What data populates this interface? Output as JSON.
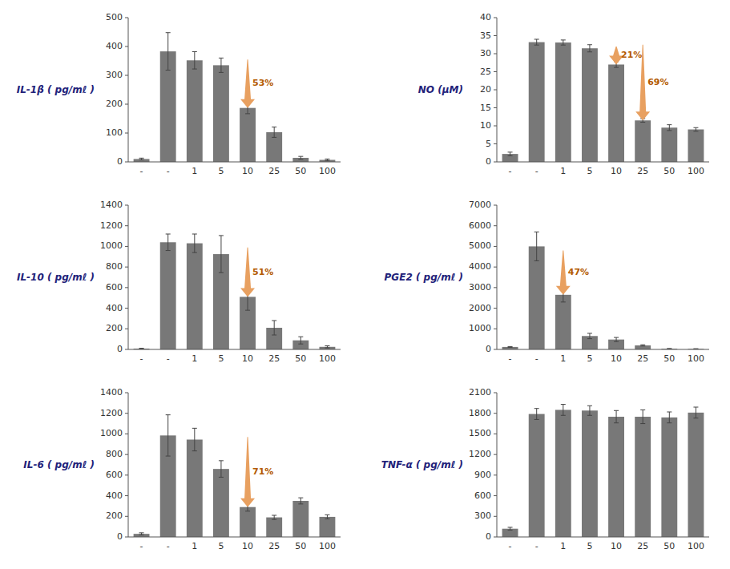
{
  "chart_data": [
    {
      "type": "bar",
      "ylabel": "IL-1β ( pg/mℓ )",
      "categories": [
        "-",
        "-",
        "1",
        "5",
        "10",
        "25",
        "50",
        "100"
      ],
      "values": [
        10,
        383,
        352,
        335,
        187,
        103,
        14,
        7
      ],
      "errors": [
        3,
        65,
        30,
        25,
        20,
        18,
        5,
        3
      ],
      "color": "#787878",
      "grid": false,
      "ylim": [
        0,
        500
      ],
      "yticks": [
        0,
        100,
        200,
        300,
        400,
        500
      ],
      "annotations": [
        {
          "text": "53%",
          "x": 4,
          "y_from": 355,
          "y_to": 187,
          "color": "#E8A060"
        }
      ]
    },
    {
      "type": "bar",
      "ylabel": "NO (μM)",
      "categories": [
        "-",
        "-",
        "1",
        "5",
        "10",
        "25",
        "50",
        "100"
      ],
      "values": [
        2.2,
        33.2,
        33.1,
        31.5,
        27.0,
        11.5,
        9.5,
        9.0
      ],
      "errors": [
        0.5,
        0.8,
        0.7,
        1.0,
        0.8,
        0.5,
        0.8,
        0.5
      ],
      "color": "#787878",
      "grid": false,
      "ylim": [
        0,
        40
      ],
      "yticks": [
        0,
        5,
        10,
        15,
        20,
        25,
        30,
        35,
        40
      ],
      "annotations": [
        {
          "text": "21%",
          "x": 4,
          "y_from": 32.0,
          "y_to": 27.0,
          "color": "#E8A060"
        },
        {
          "text": "69%",
          "x": 5,
          "y_from": 32.5,
          "y_to": 11.5,
          "color": "#E8A060"
        }
      ]
    },
    {
      "type": "bar",
      "ylabel": "IL-10 ( pg/mℓ )",
      "categories": [
        "-",
        "-",
        "1",
        "5",
        "10",
        "25",
        "50",
        "100"
      ],
      "values": [
        8,
        1040,
        1030,
        925,
        510,
        210,
        88,
        25
      ],
      "errors": [
        3,
        80,
        90,
        180,
        130,
        70,
        35,
        10
      ],
      "color": "#787878",
      "grid": false,
      "ylim": [
        0,
        1400
      ],
      "yticks": [
        0,
        200,
        400,
        600,
        800,
        1000,
        1200,
        1400
      ],
      "annotations": [
        {
          "text": "51%",
          "x": 4,
          "y_from": 990,
          "y_to": 510,
          "color": "#E8A060"
        }
      ]
    },
    {
      "type": "bar",
      "ylabel": "PGE2 ( pg/mℓ )",
      "categories": [
        "-",
        "-",
        "1",
        "5",
        "10",
        "25",
        "50",
        "100"
      ],
      "values": [
        120,
        5000,
        2650,
        650,
        480,
        195,
        35,
        28
      ],
      "errors": [
        20,
        700,
        350,
        130,
        100,
        30,
        8,
        5
      ],
      "color": "#787878",
      "grid": false,
      "ylim": [
        0,
        7000
      ],
      "yticks": [
        0,
        1000,
        2000,
        3000,
        4000,
        5000,
        6000,
        7000
      ],
      "annotations": [
        {
          "text": "47%",
          "x": 2,
          "y_from": 4800,
          "y_to": 2650,
          "color": "#E8A060"
        }
      ]
    },
    {
      "type": "bar",
      "ylabel": "IL-6 ( pg/mℓ )",
      "categories": [
        "-",
        "-",
        "1",
        "5",
        "10",
        "25",
        "50",
        "100"
      ],
      "values": [
        30,
        985,
        945,
        660,
        290,
        190,
        350,
        195
      ],
      "errors": [
        10,
        200,
        110,
        80,
        40,
        20,
        30,
        20
      ],
      "color": "#787878",
      "grid": false,
      "ylim": [
        0,
        1400
      ],
      "yticks": [
        0,
        200,
        400,
        600,
        800,
        1000,
        1200,
        1400
      ],
      "annotations": [
        {
          "text": "71%",
          "x": 4,
          "y_from": 970,
          "y_to": 290,
          "color": "#E8A060"
        }
      ]
    },
    {
      "type": "bar",
      "ylabel": "TNF-α ( pg/mℓ )",
      "categories": [
        "-",
        "-",
        "1",
        "5",
        "10",
        "25",
        "50",
        "100"
      ],
      "values": [
        120,
        1790,
        1850,
        1840,
        1750,
        1750,
        1740,
        1810
      ],
      "errors": [
        20,
        80,
        80,
        70,
        90,
        100,
        80,
        80
      ],
      "color": "#787878",
      "grid": false,
      "ylim": [
        0,
        2100
      ],
      "yticks": [
        0,
        300,
        600,
        900,
        1200,
        1500,
        1800,
        2100
      ]
    }
  ]
}
